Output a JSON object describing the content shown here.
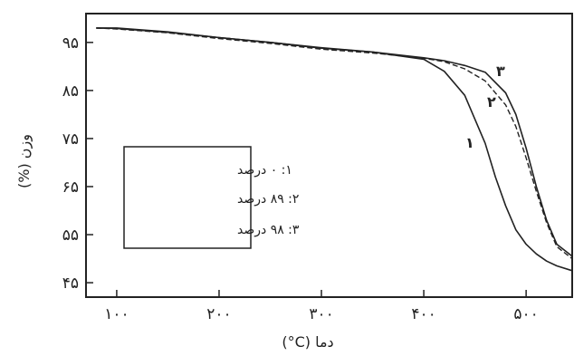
{
  "chart_data": {
    "type": "line",
    "xlabel": "دما (C°)",
    "ylabel": "وزن (%)",
    "xlim": [
      70,
      545
    ],
    "ylim": [
      42,
      101
    ],
    "xticks": [
      100,
      200,
      300,
      400,
      500
    ],
    "yticks": [
      45,
      55,
      65,
      75,
      85,
      95
    ],
    "xtick_labels": [
      "۱۰۰",
      "۲۰۰",
      "۳۰۰",
      "۴۰۰",
      "۵۰۰"
    ],
    "ytick_labels": [
      "۴۵",
      "۵۵",
      "۶۵",
      "۷۵",
      "۸۵",
      "۹۵"
    ],
    "legend": {
      "placement": "middle-left",
      "entries": [
        "۱: ۰ درصد",
        "۲: ۸۹ درصد",
        "۳: ۹۸ درصد"
      ]
    },
    "series": [
      {
        "name": "۱",
        "x": [
          80,
          100,
          150,
          200,
          250,
          300,
          350,
          400,
          420,
          440,
          460,
          470,
          480,
          490,
          500,
          510,
          520,
          530,
          545
        ],
        "y": [
          98,
          98,
          97.2,
          96,
          95,
          93.8,
          93,
          91.5,
          89,
          84,
          74,
          67,
          61,
          56,
          53,
          51,
          49.5,
          48.5,
          47.5
        ]
      },
      {
        "name": "۲",
        "x": [
          80,
          100,
          150,
          200,
          250,
          300,
          350,
          400,
          420,
          440,
          460,
          480,
          490,
          500,
          510,
          520,
          530,
          545
        ],
        "y": [
          98,
          97.8,
          97,
          95.8,
          94.8,
          93.6,
          92.8,
          91.7,
          91,
          89.5,
          87,
          82,
          77.5,
          71,
          64,
          57.5,
          52.5,
          50
        ]
      },
      {
        "name": "۳",
        "x": [
          80,
          100,
          150,
          200,
          250,
          300,
          350,
          400,
          420,
          440,
          460,
          480,
          490,
          500,
          510,
          520,
          530,
          545
        ],
        "y": [
          98,
          97.9,
          97.1,
          96,
          95,
          93.9,
          93,
          91.8,
          91.2,
          90.2,
          88.8,
          84.5,
          80,
          73,
          65,
          58,
          53,
          50.5
        ]
      }
    ],
    "curve_labels": [
      "۳",
      "۲",
      "۱"
    ]
  }
}
